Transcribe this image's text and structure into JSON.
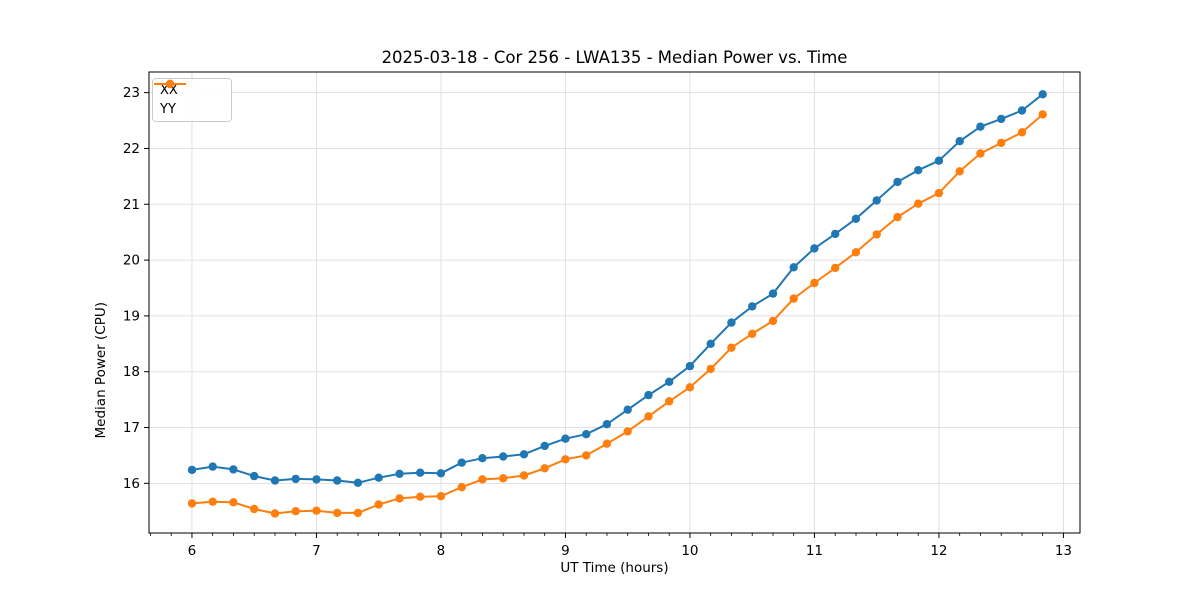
{
  "chart_data": {
    "type": "line",
    "title": "2025-03-18 - Cor 256 - LWA135 - Median Power vs. Time",
    "xlabel": "UT Time (hours)",
    "ylabel": "Median Power (CPU)",
    "xlim": [
      5.655,
      13.133
    ],
    "ylim": [
      15.11,
      23.37
    ],
    "xticks": [
      6,
      7,
      8,
      9,
      10,
      11,
      12,
      13
    ],
    "yticks": [
      16,
      17,
      18,
      19,
      20,
      21,
      22,
      23
    ],
    "x_minor_step": 0.16667,
    "grid": true,
    "legend_position": "upper-left",
    "x": [
      6.0,
      6.167,
      6.333,
      6.5,
      6.667,
      6.833,
      7.0,
      7.167,
      7.333,
      7.5,
      7.667,
      7.833,
      8.0,
      8.167,
      8.333,
      8.5,
      8.667,
      8.833,
      9.0,
      9.167,
      9.333,
      9.5,
      9.667,
      9.833,
      10.0,
      10.167,
      10.333,
      10.5,
      10.667,
      10.833,
      11.0,
      11.167,
      11.333,
      11.5,
      11.667,
      11.833,
      12.0,
      12.167,
      12.333,
      12.5,
      12.667,
      12.833
    ],
    "series": [
      {
        "name": "XX",
        "color": "#1f77b4",
        "values": [
          16.24,
          16.3,
          16.25,
          16.13,
          16.05,
          16.08,
          16.07,
          16.05,
          16.01,
          16.1,
          16.17,
          16.19,
          16.18,
          16.37,
          16.45,
          16.48,
          16.52,
          16.67,
          16.8,
          16.88,
          17.06,
          17.32,
          17.58,
          17.82,
          18.1,
          18.5,
          18.88,
          19.17,
          19.4,
          19.87,
          20.21,
          20.47,
          20.74,
          21.07,
          21.4,
          21.61,
          21.78,
          22.13,
          22.39,
          22.53,
          22.68,
          22.97
        ]
      },
      {
        "name": "YY",
        "color": "#ff7f0e",
        "values": [
          15.64,
          15.67,
          15.66,
          15.54,
          15.46,
          15.5,
          15.51,
          15.47,
          15.47,
          15.62,
          15.73,
          15.76,
          15.77,
          15.93,
          16.07,
          16.09,
          16.14,
          16.27,
          16.43,
          16.5,
          16.71,
          16.93,
          17.2,
          17.47,
          17.72,
          18.05,
          18.43,
          18.68,
          18.91,
          19.31,
          19.59,
          19.86,
          20.14,
          20.46,
          20.77,
          21.01,
          21.2,
          21.59,
          21.91,
          22.1,
          22.29,
          22.61
        ]
      }
    ]
  },
  "colors": {
    "series_xx": "#1f77b4",
    "series_yy": "#ff7f0e",
    "grid": "#e0e0e0",
    "spine": "#000000",
    "background": "#ffffff",
    "legend_border": "#cccccc"
  }
}
